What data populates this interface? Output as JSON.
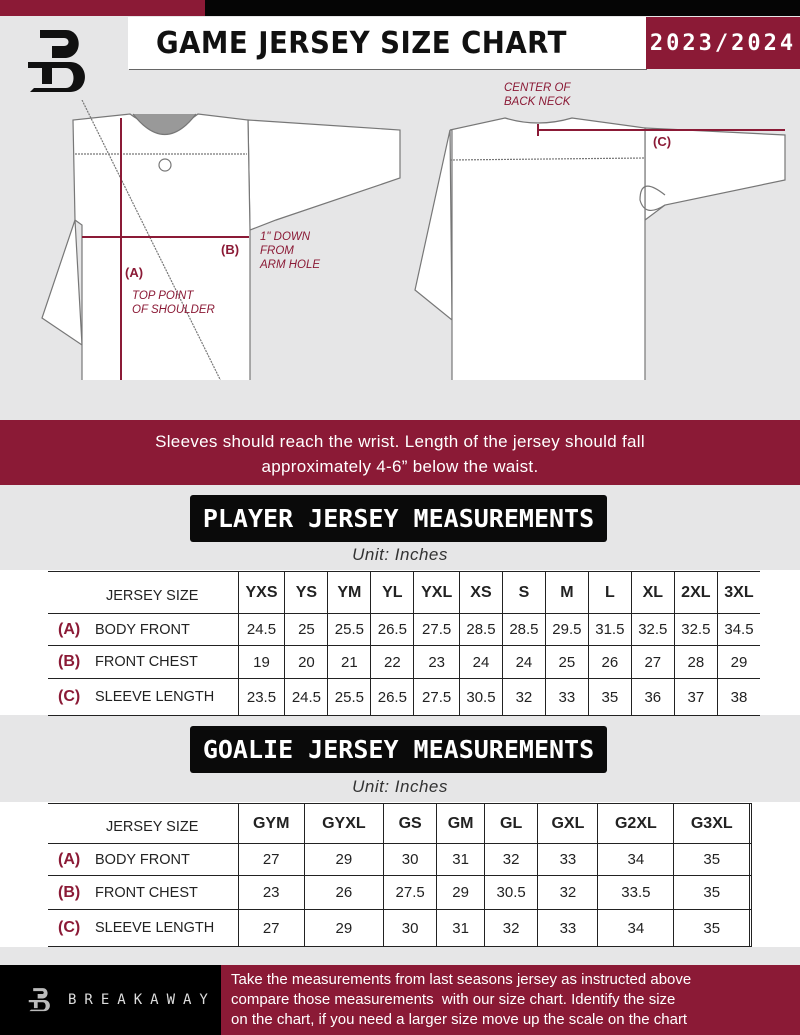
{
  "header": {
    "title": "GAME JERSEY SIZE CHART",
    "season": "2023/2024"
  },
  "diagram": {
    "center_back_neck": [
      "CENTER OF",
      "BACK NECK"
    ],
    "label_a": "(A)",
    "label_b": "(B)",
    "label_c": "(C)",
    "b_note": [
      "1\" DOWN",
      "FROM",
      "ARM HOLE"
    ],
    "a_note": [
      "TOP POINT",
      "OF SHOULDER"
    ]
  },
  "instructions": [
    "Sleeves should reach the wrist. Length of the jersey should fall",
    "approximately 4-6” below the waist."
  ],
  "player": {
    "title": "PLAYER JERSEY MEASUREMENTS",
    "unit": "Unit: Inches",
    "size_label": "JERSEY SIZE",
    "sizes": [
      "YXS",
      "YS",
      "YM",
      "YL",
      "YXL",
      "XS",
      "S",
      "M",
      "L",
      "XL",
      "2XL",
      "3XL"
    ],
    "rows": [
      {
        "tag": "(A)",
        "label": "BODY FRONT",
        "values": [
          "24.5",
          "25",
          "25.5",
          "26.5",
          "27.5",
          "28.5",
          "28.5",
          "29.5",
          "31.5",
          "32.5",
          "32.5",
          "34.5"
        ]
      },
      {
        "tag": "(B)",
        "label": "FRONT CHEST",
        "values": [
          "19",
          "20",
          "21",
          "22",
          "23",
          "24",
          "24",
          "25",
          "26",
          "27",
          "28",
          "29"
        ]
      },
      {
        "tag": "(C)",
        "label": "SLEEVE LENGTH",
        "values": [
          "23.5",
          "24.5",
          "25.5",
          "26.5",
          "27.5",
          "30.5",
          "32",
          "33",
          "35",
          "36",
          "37",
          "38"
        ]
      }
    ]
  },
  "goalie": {
    "title": "GOALIE JERSEY MEASUREMENTS",
    "unit": "Unit: Inches",
    "size_label": "JERSEY SIZE",
    "sizes": [
      "GYM",
      "GYXL",
      "GS",
      "GM",
      "GL",
      "GXL",
      "G2XL",
      "G3XL",
      ""
    ],
    "rows": [
      {
        "tag": "(A)",
        "label": "BODY FRONT",
        "values": [
          "27",
          "29",
          "30",
          "31",
          "32",
          "33",
          "34",
          "35",
          ""
        ]
      },
      {
        "tag": "(B)",
        "label": "FRONT CHEST",
        "values": [
          "23",
          "26",
          "27.5",
          "29",
          "30.5",
          "32",
          "33.5",
          "35",
          ""
        ]
      },
      {
        "tag": "(C)",
        "label": "SLEEVE LENGTH",
        "values": [
          "27",
          "29",
          "30",
          "31",
          "32",
          "33",
          "34",
          "35",
          ""
        ]
      }
    ]
  },
  "footer": {
    "brand": "BREAKAWAY",
    "text": [
      "Take the measurements from last seasons jersey as instructed above",
      "compare those measurements  with our size chart. Identify the size",
      "on the chart, if you need a larger size move up the scale on the chart"
    ]
  },
  "colors": {
    "accent": "#8b1a36",
    "dark": "#050505",
    "background": "#e6e6e7"
  }
}
